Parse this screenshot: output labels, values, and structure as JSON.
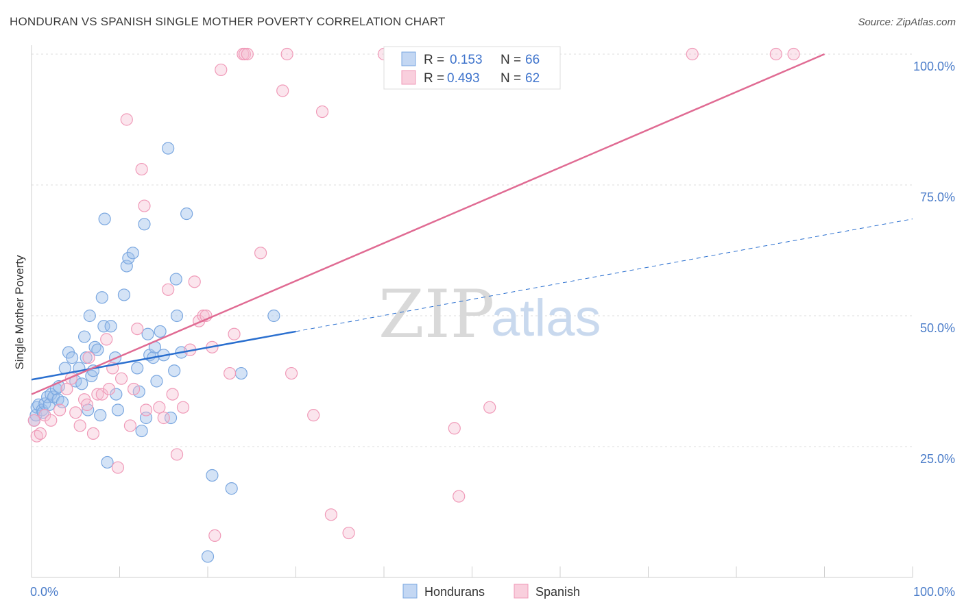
{
  "header": {
    "title": "HONDURAN VS SPANISH SINGLE MOTHER POVERTY CORRELATION CHART",
    "source": "Source: ZipAtlas.com"
  },
  "watermark": {
    "zip": "ZIP",
    "atlas": "atlas"
  },
  "colors": {
    "hondurans": "#7aa7e0",
    "hondurans_line": "#2a6fcf",
    "spanish": "#f09ab8",
    "spanish_line": "#e06b93",
    "tick": "#4a7cc9"
  },
  "chart_data": {
    "type": "scatter",
    "title": "HONDURAN VS SPANISH SINGLE MOTHER POVERTY CORRELATION CHART",
    "xlabel": "",
    "ylabel": "Single Mother Poverty",
    "xlim": [
      0,
      100
    ],
    "ylim": [
      0,
      100
    ],
    "x_tick_labels": [
      "0.0%",
      "100.0%"
    ],
    "y_ticks": [
      25,
      50,
      75,
      100
    ],
    "y_tick_labels": [
      "25.0%",
      "50.0%",
      "75.0%",
      "100.0%"
    ],
    "grid": true,
    "legend_top": [
      {
        "r_label": "R =",
        "r": "0.153",
        "n_label": "N =",
        "n": "66"
      },
      {
        "r_label": "R =",
        "r": "0.493",
        "n_label": "N =",
        "n": "62"
      }
    ],
    "series": [
      {
        "name": "Hondurans",
        "trend": {
          "x0": 0,
          "y0": 37.8,
          "x1": 30,
          "y1": 47.0,
          "dash_to_x": 100,
          "dash_to_y": 68.5
        },
        "points": [
          [
            0.3,
            30
          ],
          [
            0.5,
            31
          ],
          [
            0.6,
            32.5
          ],
          [
            0.8,
            33
          ],
          [
            1.2,
            32
          ],
          [
            1.3,
            31.5
          ],
          [
            1.5,
            33.2
          ],
          [
            1.8,
            34.5
          ],
          [
            2.0,
            33
          ],
          [
            2.2,
            35
          ],
          [
            2.5,
            34.5
          ],
          [
            2.8,
            36
          ],
          [
            3.0,
            34
          ],
          [
            3.1,
            36.5
          ],
          [
            3.5,
            33.5
          ],
          [
            3.8,
            40
          ],
          [
            4.2,
            43
          ],
          [
            4.6,
            42
          ],
          [
            5.0,
            37.5
          ],
          [
            5.4,
            40
          ],
          [
            5.7,
            37
          ],
          [
            6.0,
            46
          ],
          [
            6.2,
            42
          ],
          [
            6.4,
            32
          ],
          [
            6.6,
            50
          ],
          [
            6.8,
            38.5
          ],
          [
            7.0,
            39.5
          ],
          [
            7.2,
            44
          ],
          [
            7.5,
            43.5
          ],
          [
            7.8,
            31
          ],
          [
            8.0,
            53.5
          ],
          [
            8.2,
            48
          ],
          [
            8.6,
            22
          ],
          [
            8.3,
            68.5
          ],
          [
            9.0,
            48
          ],
          [
            9.5,
            42
          ],
          [
            9.6,
            35
          ],
          [
            9.8,
            32
          ],
          [
            10.5,
            54
          ],
          [
            10.8,
            59.5
          ],
          [
            11.0,
            61
          ],
          [
            11.5,
            62
          ],
          [
            12.0,
            40
          ],
          [
            12.2,
            35.5
          ],
          [
            12.5,
            28
          ],
          [
            12.8,
            67.5
          ],
          [
            13.0,
            30.5
          ],
          [
            13.2,
            46.5
          ],
          [
            13.4,
            42.5
          ],
          [
            13.8,
            42
          ],
          [
            14.0,
            44
          ],
          [
            14.2,
            37.5
          ],
          [
            14.6,
            47
          ],
          [
            15.0,
            42.5
          ],
          [
            15.5,
            82
          ],
          [
            15.8,
            30.5
          ],
          [
            16.2,
            39.5
          ],
          [
            16.4,
            57
          ],
          [
            16.5,
            50
          ],
          [
            17.0,
            43
          ],
          [
            17.6,
            69.5
          ],
          [
            20.0,
            4
          ],
          [
            20.5,
            19.5
          ],
          [
            22.7,
            17
          ],
          [
            23.8,
            39
          ],
          [
            27.5,
            50
          ]
        ]
      },
      {
        "name": "Spanish",
        "trend": {
          "x0": 0,
          "y0": 35,
          "x1": 90,
          "y1": 100
        },
        "points": [
          [
            0.3,
            30
          ],
          [
            0.6,
            27
          ],
          [
            1.0,
            27.5
          ],
          [
            1.5,
            31
          ],
          [
            2.2,
            30
          ],
          [
            3.2,
            32
          ],
          [
            4.0,
            36
          ],
          [
            4.5,
            38
          ],
          [
            5.0,
            31.5
          ],
          [
            5.5,
            29
          ],
          [
            6.0,
            34
          ],
          [
            6.3,
            33
          ],
          [
            6.5,
            42
          ],
          [
            7.0,
            27.5
          ],
          [
            7.5,
            35
          ],
          [
            8.0,
            35
          ],
          [
            8.5,
            45.5
          ],
          [
            8.8,
            36
          ],
          [
            9.2,
            40
          ],
          [
            9.8,
            21
          ],
          [
            10.2,
            38
          ],
          [
            10.8,
            87.5
          ],
          [
            11.2,
            29
          ],
          [
            11.6,
            36
          ],
          [
            12.0,
            47.5
          ],
          [
            12.5,
            78
          ],
          [
            12.8,
            71
          ],
          [
            13.0,
            32
          ],
          [
            14.5,
            32.5
          ],
          [
            15.0,
            30.5
          ],
          [
            15.5,
            55
          ],
          [
            16.0,
            35
          ],
          [
            16.5,
            23.5
          ],
          [
            17.2,
            32.5
          ],
          [
            18.0,
            43.5
          ],
          [
            18.5,
            56.5
          ],
          [
            19.0,
            49
          ],
          [
            19.5,
            50
          ],
          [
            19.8,
            50
          ],
          [
            20.5,
            44
          ],
          [
            20.8,
            8
          ],
          [
            21.5,
            97
          ],
          [
            22.5,
            39
          ],
          [
            23.0,
            46.5
          ],
          [
            24.0,
            100
          ],
          [
            24.2,
            100
          ],
          [
            24.5,
            100
          ],
          [
            26.0,
            62
          ],
          [
            28.5,
            93
          ],
          [
            29.0,
            100
          ],
          [
            29.5,
            39
          ],
          [
            32.0,
            31
          ],
          [
            33.0,
            89
          ],
          [
            34.0,
            12
          ],
          [
            36.0,
            8.5
          ],
          [
            40.0,
            100
          ],
          [
            48.0,
            28.5
          ],
          [
            48.5,
            15.5
          ],
          [
            52.0,
            32.5
          ],
          [
            75.0,
            100
          ],
          [
            84.5,
            100
          ],
          [
            86.5,
            100
          ]
        ]
      }
    ]
  },
  "bottom_legend": [
    "Hondurans",
    "Spanish"
  ]
}
